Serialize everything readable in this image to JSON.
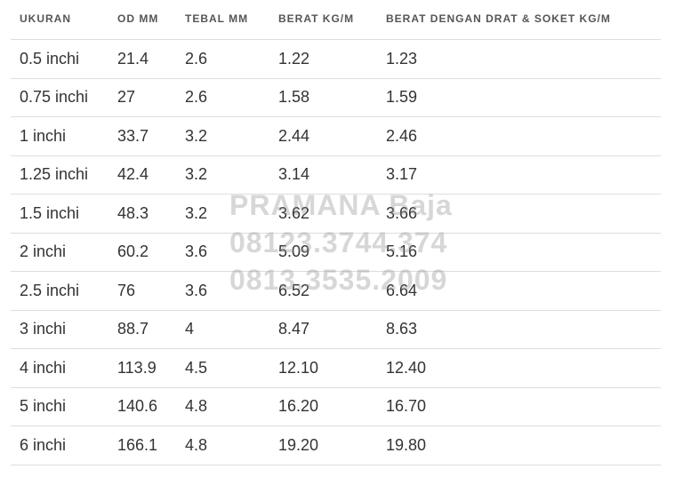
{
  "table": {
    "headers": [
      "UKURAN",
      "OD MM",
      "TEBAL MM",
      "BERAT KG/M",
      "BERAT DENGAN DRAT & SOKET KG/M"
    ],
    "rows": [
      [
        "0.5 inchi",
        "21.4",
        "2.6",
        "1.22",
        "1.23"
      ],
      [
        "0.75 inchi",
        "27",
        "2.6",
        "1.58",
        "1.59"
      ],
      [
        "1 inchi",
        "33.7",
        "3.2",
        "2.44",
        "2.46"
      ],
      [
        "1.25 inchi",
        "42.4",
        "3.2",
        "3.14",
        "3.17"
      ],
      [
        "1.5 inchi",
        "48.3",
        "3.2",
        "3.62",
        "3.66"
      ],
      [
        "2 inchi",
        "60.2",
        "3.6",
        "5.09",
        "5.16"
      ],
      [
        "2.5 inchi",
        "76",
        "3.6",
        "6.52",
        "6.64"
      ],
      [
        "3 inchi",
        "88.7",
        "4",
        "8.47",
        "8.63"
      ],
      [
        "4 inchi",
        "113.9",
        "4.5",
        "12.10",
        "12.40"
      ],
      [
        "5 inchi",
        "140.6",
        "4.8",
        "16.20",
        "16.70"
      ],
      [
        "6 inchi",
        "166.1",
        "4.8",
        "19.20",
        "19.80"
      ]
    ]
  },
  "watermark": {
    "line1": "PRAMANA Baja",
    "line2": "08123.3744.374",
    "line3": "0813.3535.2009"
  }
}
